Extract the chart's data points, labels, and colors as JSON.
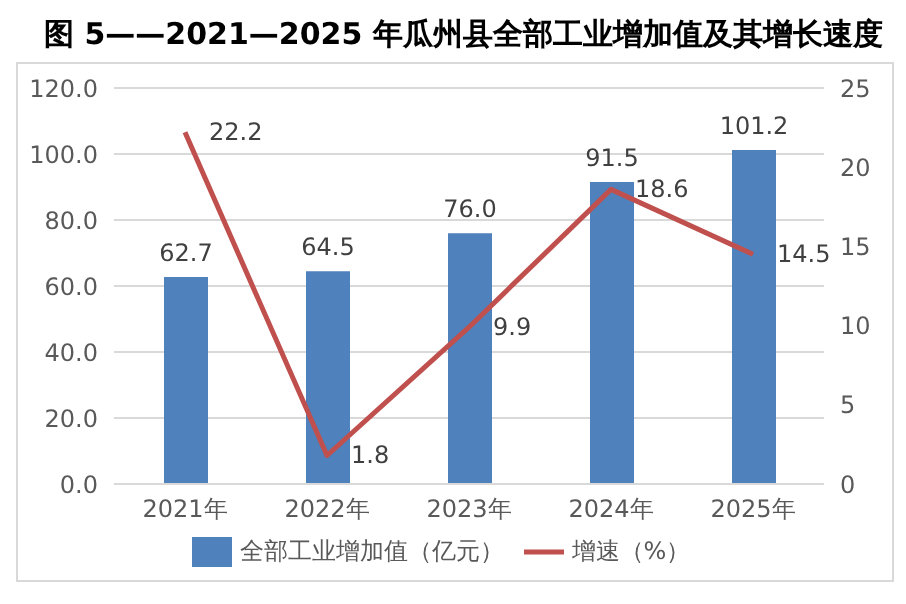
{
  "chart_data": {
    "type": "bar",
    "title": "图 5——2021—2025 年瓜州县全部工业增加值及其增长速度",
    "categories": [
      "2021年",
      "2022年",
      "2023年",
      "2024年",
      "2025年"
    ],
    "series": [
      {
        "name": "全部工业增加值（亿元）",
        "color": "#4f81bd",
        "values": [
          62.7,
          64.5,
          76.0,
          91.5,
          101.2
        ],
        "value_labels": [
          "62.7",
          "64.5",
          "76.0",
          "91.5",
          "101.2"
        ]
      },
      {
        "name": "增速（%）",
        "type": "line",
        "axis": "y2",
        "color": "#c0504d",
        "values": [
          22.2,
          1.8,
          9.9,
          18.6,
          14.5
        ],
        "value_labels": [
          "22.2",
          "1.8",
          "9.9",
          "18.6",
          "14.5"
        ]
      }
    ],
    "ylim": [
      0,
      120
    ],
    "yticks": [
      {
        "value": 0,
        "label": "0.0"
      },
      {
        "value": 20,
        "label": "20.0"
      },
      {
        "value": 40,
        "label": "40.0"
      },
      {
        "value": 60,
        "label": "60.0"
      },
      {
        "value": 80,
        "label": "80.0"
      },
      {
        "value": 100,
        "label": "100.0"
      },
      {
        "value": 120,
        "label": "120.0"
      }
    ],
    "y2lim": [
      0,
      25
    ],
    "y2ticks": [
      0,
      5,
      10,
      15,
      20,
      25
    ],
    "grid": "y",
    "legend": "bottom",
    "marker": "none",
    "line_style": "solid"
  }
}
